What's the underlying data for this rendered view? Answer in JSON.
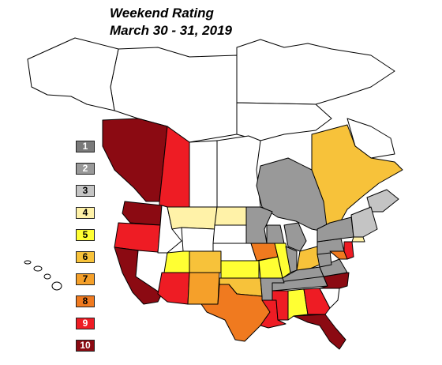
{
  "map": {
    "title_line1": "Weekend Rating",
    "title_line2": "March 30 - 31, 2019"
  },
  "legend": {
    "items": [
      {
        "label": "1",
        "color": "#7a7a7a"
      },
      {
        "label": "2",
        "color": "#999999"
      },
      {
        "label": "3",
        "color": "#c4c4c4"
      },
      {
        "label": "4",
        "color": "#fff2a8"
      },
      {
        "label": "5",
        "color": "#ffff33"
      },
      {
        "label": "6",
        "color": "#f7c23a"
      },
      {
        "label": "7",
        "color": "#f5a02a"
      },
      {
        "label": "8",
        "color": "#f07a1f"
      },
      {
        "label": "9",
        "color": "#ee1c24"
      },
      {
        "label": "10",
        "color": "#8b0a12"
      }
    ]
  },
  "regions": [
    {
      "name": "British Columbia",
      "rating": 10
    },
    {
      "name": "Alberta",
      "rating": 9
    },
    {
      "name": "Washington",
      "rating": 10
    },
    {
      "name": "Oregon",
      "rating": 9
    },
    {
      "name": "California",
      "rating": 10
    },
    {
      "name": "Montana",
      "rating": 4
    },
    {
      "name": "North Dakota",
      "rating": 4
    },
    {
      "name": "Ontario",
      "rating": 2
    },
    {
      "name": "Quebec",
      "rating": 6
    },
    {
      "name": "Utah",
      "rating": 5
    },
    {
      "name": "Colorado",
      "rating": 6
    },
    {
      "name": "Kansas",
      "rating": 5
    },
    {
      "name": "Iowa",
      "rating": 8
    },
    {
      "name": "Illinois",
      "rating": 5
    },
    {
      "name": "Ohio",
      "rating": 6
    },
    {
      "name": "Arizona",
      "rating": 9
    },
    {
      "name": "New Mexico",
      "rating": 7
    },
    {
      "name": "Texas",
      "rating": 8
    },
    {
      "name": "Oklahoma",
      "rating": 6
    },
    {
      "name": "Louisiana",
      "rating": 9
    },
    {
      "name": "Mississippi",
      "rating": 9
    },
    {
      "name": "Alabama",
      "rating": 5
    },
    {
      "name": "Georgia",
      "rating": 9
    },
    {
      "name": "Florida",
      "rating": 10
    },
    {
      "name": "North Carolina",
      "rating": 10
    },
    {
      "name": "Maryland",
      "rating": 8
    }
  ]
}
